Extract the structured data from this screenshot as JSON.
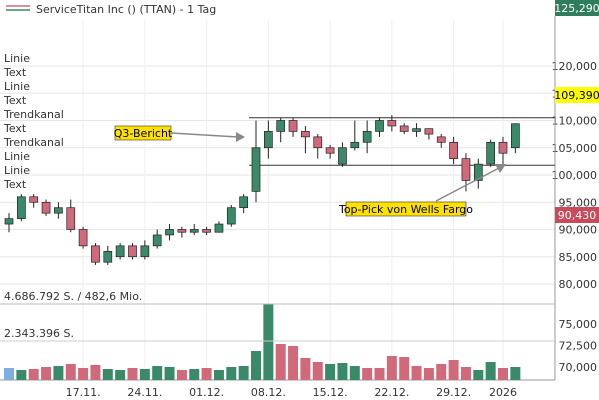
{
  "header": {
    "title": "ServiceTitan Inc () (TTAN) - 1 Tag"
  },
  "legend_items": [
    "Linie",
    "Text",
    "Linie",
    "Text",
    "Trendkanal",
    "Text",
    "Trendkanal",
    "Linie",
    "Linie",
    "Text"
  ],
  "price_labels": {
    "top": "125,290",
    "current": "109,390",
    "low": "90,430"
  },
  "colors": {
    "up": "#3a8a6a",
    "down": "#d06a7a",
    "top_tag": "#2f7d5c",
    "current_tag": "#ffff00",
    "low_tag": "#c94a5a",
    "annotation_fill": "#ffe100"
  },
  "volume": {
    "max_label": "4.686.792 S. / 482,6 Mio.",
    "mid_label": "2.343.396 S."
  },
  "annotations": {
    "q3": "Q3-Bericht",
    "wells": "Top-Pick von Wells Fargo"
  },
  "chart_data": {
    "type": "candlestick",
    "title": "ServiceTitan Inc () (TTAN) - 1 Tag",
    "y_ticks": [
      "120,000",
      "115,000",
      "110,000",
      "105,000",
      "100,000",
      "95,000",
      "90,000",
      "85,000",
      "80,000",
      "75,000",
      "72,500",
      "70,000"
    ],
    "y_ticks_numeric": [
      120,
      115,
      110,
      105,
      100,
      95,
      90,
      85,
      80,
      75,
      72.5,
      70
    ],
    "ylim": [
      80,
      125
    ],
    "x_ticks": [
      "17.11.",
      "24.11.",
      "01.12.",
      "08.12.",
      "15.12.",
      "22.12.",
      "29.12.",
      "2026"
    ],
    "x_tick_candle_index": [
      6,
      11,
      16,
      21,
      26,
      31,
      36,
      40
    ],
    "grid": true,
    "ohlc": [
      [
        91,
        92,
        89.5,
        93
      ],
      [
        92,
        96,
        91.5,
        96.5
      ],
      [
        96,
        95,
        94,
        96.5
      ],
      [
        95,
        93,
        92.5,
        95.5
      ],
      [
        93,
        94,
        92,
        95
      ],
      [
        94,
        90,
        89.5,
        95.5
      ],
      [
        90,
        87,
        86.5,
        90.5
      ],
      [
        87,
        84,
        83.5,
        87.5
      ],
      [
        84,
        86,
        83.5,
        87
      ],
      [
        85,
        87,
        84.5,
        87.5
      ],
      [
        87,
        85,
        84.5,
        87.5
      ],
      [
        85,
        87,
        84.5,
        88
      ],
      [
        87,
        89,
        86.5,
        90
      ],
      [
        89,
        90,
        88,
        91
      ],
      [
        90,
        89.5,
        88.5,
        90.5
      ],
      [
        89.5,
        90,
        89,
        91
      ],
      [
        90,
        89.5,
        89,
        90.5
      ],
      [
        89.5,
        91,
        89.5,
        91.5
      ],
      [
        91,
        94,
        90.5,
        94.5
      ],
      [
        94,
        96,
        93,
        96.5
      ],
      [
        97,
        105,
        95,
        110
      ],
      [
        105,
        108,
        103,
        110
      ],
      [
        108,
        110,
        106,
        110.5
      ],
      [
        110,
        108,
        107,
        110.5
      ],
      [
        108,
        107,
        104,
        109
      ],
      [
        107,
        105,
        103,
        107.5
      ],
      [
        105,
        104,
        103,
        105.5
      ],
      [
        102,
        105,
        101.5,
        106
      ],
      [
        105,
        106,
        104.5,
        110
      ],
      [
        106,
        108,
        104,
        110
      ],
      [
        108,
        110,
        107,
        110.5
      ],
      [
        110,
        109,
        108,
        111
      ],
      [
        109,
        108,
        107.5,
        109.5
      ],
      [
        108,
        108.5,
        107,
        109.5
      ],
      [
        108.5,
        107.5,
        106.5,
        108.5
      ],
      [
        107,
        106,
        105,
        107.5
      ],
      [
        106,
        103,
        102,
        107
      ],
      [
        103,
        99,
        97,
        104
      ],
      [
        99,
        102,
        97.5,
        103
      ],
      [
        102,
        106,
        101.5,
        106.5
      ],
      [
        106,
        104,
        102,
        107
      ],
      [
        105,
        109.4,
        104,
        109.5
      ]
    ],
    "volume_up": [
      true,
      true,
      false,
      false,
      true,
      false,
      false,
      false,
      true,
      true,
      false,
      true,
      true,
      true,
      false,
      true,
      false,
      true,
      true,
      true,
      true,
      true,
      false,
      false,
      false,
      false,
      true,
      true,
      true,
      false,
      false,
      false,
      false,
      false,
      false,
      false,
      false,
      false,
      true,
      true,
      false,
      true
    ]
  }
}
